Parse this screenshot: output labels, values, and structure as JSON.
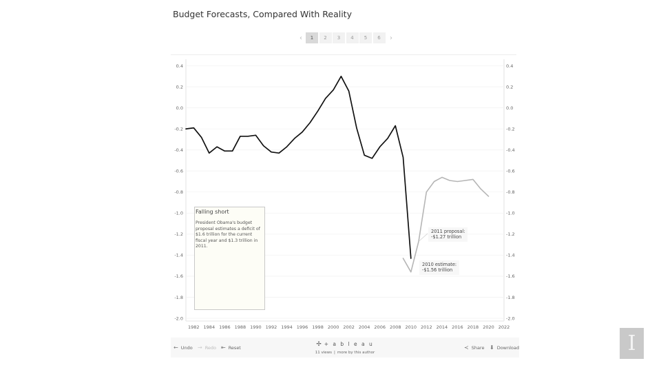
{
  "title": "Budget Forecasts, Compared With Reality",
  "pager": {
    "prev_glyph": "‹",
    "next_glyph": "›",
    "pages": [
      "1",
      "2",
      "3",
      "4",
      "5",
      "6"
    ],
    "active": "1"
  },
  "chart_data": {
    "type": "line",
    "title": "",
    "xlabel": "",
    "ylabel": "",
    "xlim": [
      1981,
      2022
    ],
    "ylim": [
      -2.0,
      0.4
    ],
    "x_ticks": [
      "1982",
      "1984",
      "1986",
      "1988",
      "1990",
      "1992",
      "1994",
      "1996",
      "1998",
      "2000",
      "2002",
      "2004",
      "2006",
      "2008",
      "2010",
      "2012",
      "2014",
      "2016",
      "2018",
      "2020",
      "2022"
    ],
    "y_ticks": [
      "0.4",
      "0.2",
      "0.0",
      "-0.2",
      "-0.4",
      "-0.6",
      "-0.8",
      "-1.0",
      "-1.2",
      "-1.4",
      "-1.6",
      "-1.8",
      "-2.0"
    ],
    "grid": true,
    "dual_y_axis": true,
    "colors": {
      "actual": "#111111",
      "forecast": "#b5b5b5"
    },
    "series": [
      {
        "x": [
          1981,
          1982,
          1983,
          1984,
          1985,
          1986,
          1987,
          1988,
          1989,
          1990,
          1991,
          1992,
          1993,
          1994,
          1995,
          1996,
          1997,
          1998,
          1999,
          2000,
          2001,
          2002,
          2003,
          2004,
          2005,
          2006,
          2007,
          2008,
          2009,
          2010
        ],
        "values": [
          -0.2,
          -0.19,
          -0.28,
          -0.43,
          -0.37,
          -0.41,
          -0.41,
          -0.27,
          -0.27,
          -0.26,
          -0.36,
          -0.42,
          -0.43,
          -0.37,
          -0.29,
          -0.23,
          -0.14,
          -0.03,
          0.09,
          0.17,
          0.3,
          0.16,
          -0.19,
          -0.45,
          -0.48,
          -0.37,
          -0.29,
          -0.17,
          -0.47,
          -1.43
        ]
      },
      {
        "x": [
          2009,
          2010,
          2011,
          2012,
          2013,
          2014,
          2015,
          2016,
          2017,
          2018,
          2019,
          2020
        ],
        "values": [
          -1.43,
          -1.56,
          -1.27,
          -0.8,
          -0.7,
          -0.66,
          -0.69,
          -0.7,
          -0.69,
          -0.68,
          -0.77,
          -0.84
        ]
      }
    ],
    "annotations": [
      {
        "line1": "2011 proposal:",
        "line2": "-$1.27 trillion"
      },
      {
        "line1": "2010 estimate:",
        "line2": "-$1.56 trillion"
      }
    ]
  },
  "annotation_box": {
    "title": "Falling short",
    "body": "President Obama's budget proposal estimates a deficit of $1.6 trillion for the current fiscal year and $1.3 trillion in 2011."
  },
  "toolbar": {
    "undo_icon": "←",
    "undo": "Undo",
    "redo_icon": "→",
    "redo": "Redo",
    "reset_icon": "⇤",
    "reset": "Reset",
    "share_icon": "≺",
    "share": "Share",
    "download_icon": "⬇",
    "download": "Download",
    "brand_icon": "✢",
    "brand": "+ a b l e a u",
    "views": "11 views",
    "separator": "|",
    "more": "more by this author"
  },
  "corner_glyph": "I"
}
